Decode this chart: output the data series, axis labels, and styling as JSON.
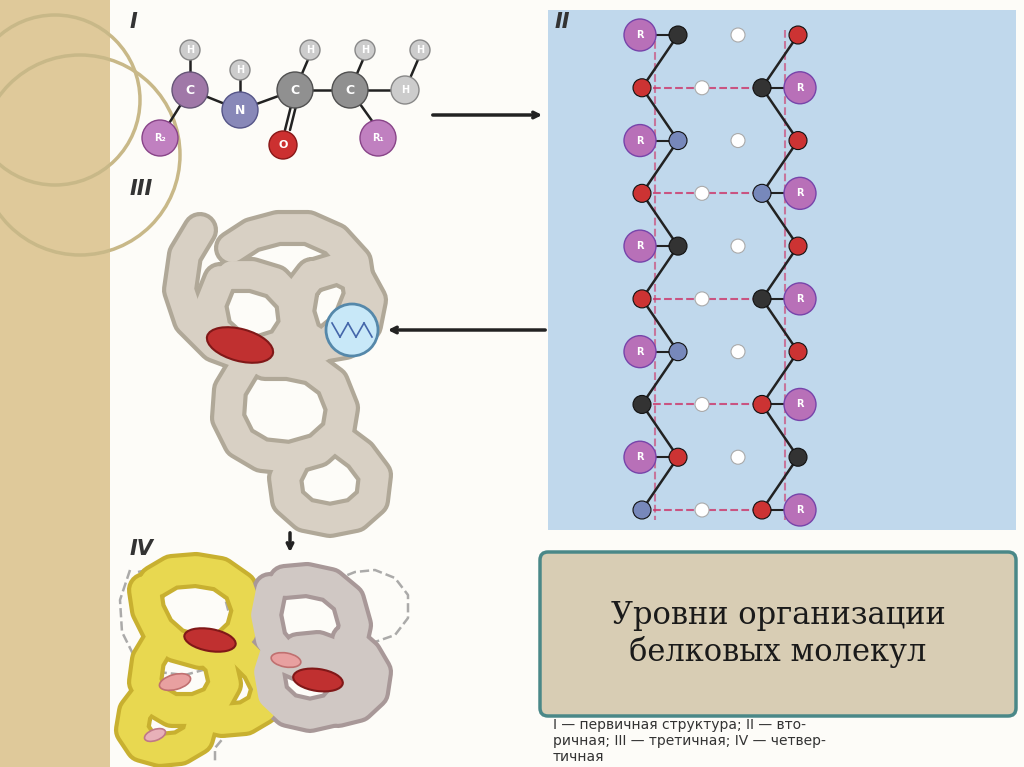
{
  "bg_color": "#fdfcf8",
  "sidebar_color": "#dfc99a",
  "main_bg": "#fdfcf8",
  "title_text": "Уровни организации\nбелковых молекул",
  "title_box_bg": "#d8cdb4",
  "title_box_border": "#4a8888",
  "caption_text": "I — первичная структура; II — вто-\nричная; III — третичная; IV — четвер-\nтичная",
  "label_I": "I",
  "label_II": "II",
  "label_III": "III",
  "label_IV": "IV",
  "arrow_color": "#222222",
  "helix_bg": "#c0d8ec",
  "bond_color": "#222222",
  "atom_C": "#9090a8",
  "atom_N": "#8888b8",
  "atom_H": "#cccccc",
  "atom_R": "#c080c0",
  "atom_O": "#cc3030",
  "tube_outer": "#b0a898",
  "tube_inner": "#d8d0c4",
  "yellow_outer": "#c8b030",
  "yellow_inner": "#e8d850",
  "red_heme": "#c03030",
  "pink_piece": "#e8a0a0"
}
